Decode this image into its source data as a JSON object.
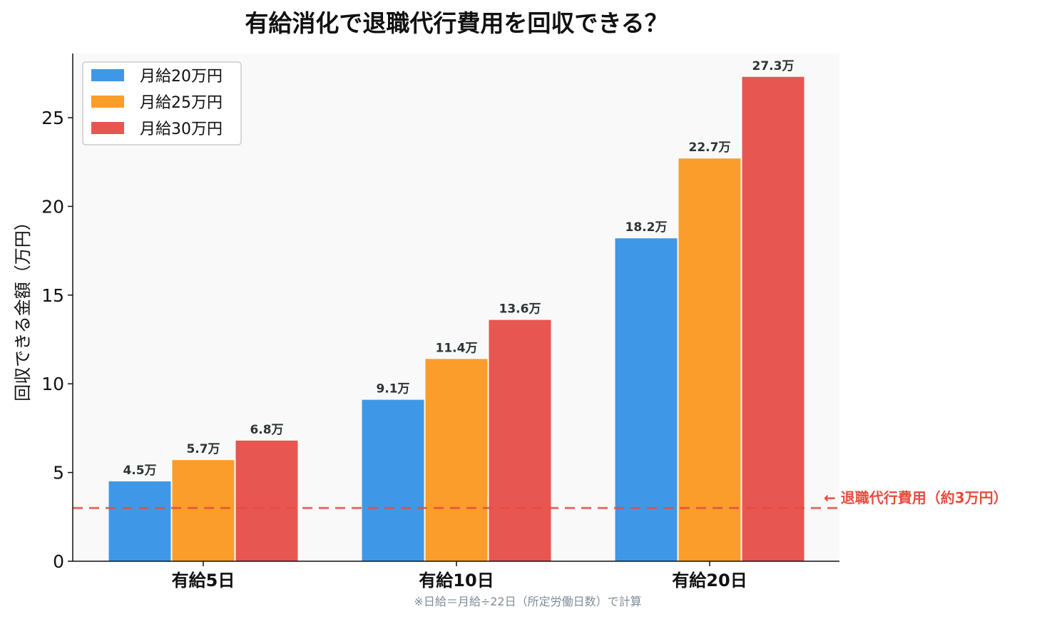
{
  "chart_data": {
    "type": "bar",
    "title": "有給消化で退職代行費用を回収できる？",
    "xlabel": "",
    "ylabel": "回収できる金額（万円）",
    "categories": [
      "有給5日",
      "有給10日",
      "有給20日"
    ],
    "series": [
      {
        "name": "月給20万円",
        "color": "#3f98e7",
        "values": [
          4.5,
          9.1,
          18.2
        ],
        "labels": [
          "4.5万",
          "9.1万",
          "18.2万"
        ]
      },
      {
        "name": "月給25万円",
        "color": "#fa9d2a",
        "values": [
          5.7,
          11.4,
          22.7
        ],
        "labels": [
          "5.7万",
          "11.4万",
          "22.7万"
        ]
      },
      {
        "name": "月給30万円",
        "color": "#e75651",
        "values": [
          6.8,
          13.6,
          27.3
        ],
        "labels": [
          "6.8万",
          "13.6万",
          "27.3万"
        ]
      }
    ],
    "ylim": [
      0,
      28.6
    ],
    "yticks": [
      0,
      5,
      10,
      15,
      20,
      25
    ],
    "grid": false,
    "legend_position": "top-left",
    "reference_line": {
      "value": 3,
      "label": "← 退職代行費用（約3万円）",
      "color": "#e74c3c"
    },
    "footnote": "※日給＝月給÷22日（所定労働日数）で計算"
  }
}
